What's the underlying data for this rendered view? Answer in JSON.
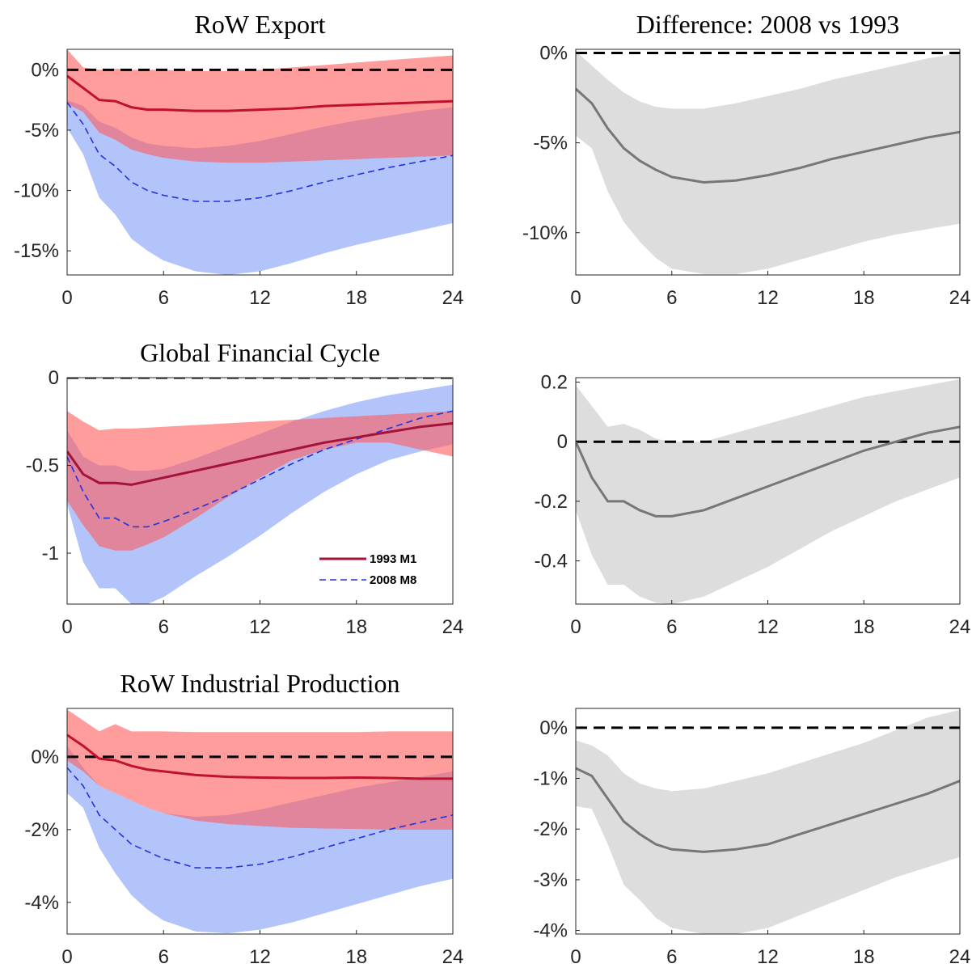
{
  "chart_data": [
    {
      "type": "line",
      "title": "RoW Export",
      "x": [
        0,
        1,
        2,
        3,
        4,
        5,
        6,
        8,
        10,
        12,
        14,
        16,
        18,
        20,
        22,
        24
      ],
      "xlim": [
        0,
        24
      ],
      "xticks": [
        0,
        6,
        12,
        18,
        24
      ],
      "ylim": [
        -17,
        1.7
      ],
      "yticks": [
        {
          "value": 0,
          "label": "0%"
        },
        {
          "value": -5,
          "label": "-5%"
        },
        {
          "value": -10,
          "label": "-10%"
        },
        {
          "value": -15,
          "label": "-15%"
        }
      ],
      "reference_line": 0,
      "series": [
        {
          "color": "#2233dd",
          "line_style": "dashed",
          "band_color": "#7f9cf5",
          "values": [
            -2.7,
            -4.5,
            -7.0,
            -8.0,
            -9.3,
            -10.0,
            -10.4,
            -10.9,
            -10.9,
            -10.6,
            -10.0,
            -9.3,
            -8.7,
            -8.1,
            -7.6,
            -7.1
          ],
          "upper": [
            -2.5,
            -3.0,
            -4.3,
            -4.8,
            -5.6,
            -6.1,
            -6.3,
            -6.5,
            -6.3,
            -5.9,
            -5.3,
            -4.7,
            -4.2,
            -3.8,
            -3.4,
            -3.1
          ],
          "lower": [
            -4.8,
            -7.0,
            -10.6,
            -12.0,
            -14.0,
            -15.0,
            -15.8,
            -16.7,
            -17.0,
            -16.7,
            -16.0,
            -15.2,
            -14.5,
            -13.9,
            -13.3,
            -12.7
          ]
        },
        {
          "color": "#c0122e",
          "line_style": "solid",
          "band_color": "#ff5c5c",
          "values": [
            -0.5,
            -1.5,
            -2.5,
            -2.6,
            -3.1,
            -3.3,
            -3.3,
            -3.4,
            -3.4,
            -3.3,
            -3.2,
            -3.0,
            -2.9,
            -2.8,
            -2.7,
            -2.6
          ],
          "upper": [
            1.7,
            0.2,
            0,
            0.1,
            0,
            0,
            0,
            -0.1,
            -0.1,
            0,
            0.2,
            0.4,
            0.6,
            0.8,
            1.0,
            1.2
          ],
          "lower": [
            -2.8,
            -3.5,
            -5.2,
            -5.8,
            -6.6,
            -7.0,
            -7.3,
            -7.6,
            -7.7,
            -7.7,
            -7.6,
            -7.5,
            -7.4,
            -7.3,
            -7.2,
            -7.1
          ]
        }
      ]
    },
    {
      "type": "line",
      "title": "Difference: 2008 vs 1993",
      "x": [
        0,
        1,
        2,
        3,
        4,
        5,
        6,
        8,
        10,
        12,
        14,
        16,
        18,
        20,
        22,
        24
      ],
      "xlim": [
        0,
        24
      ],
      "xticks": [
        0,
        6,
        12,
        18,
        24
      ],
      "ylim": [
        -12.35,
        0.2
      ],
      "yticks": [
        {
          "value": 0,
          "label": "0%"
        },
        {
          "value": -5,
          "label": "-5%"
        },
        {
          "value": -10,
          "label": "-10%"
        }
      ],
      "reference_line": 0,
      "series": [
        {
          "color": "#777777",
          "line_style": "solid",
          "band_color": "#dddddd",
          "values": [
            -2.0,
            -2.8,
            -4.2,
            -5.3,
            -6.0,
            -6.5,
            -6.9,
            -7.2,
            -7.1,
            -6.8,
            -6.4,
            -5.9,
            -5.5,
            -5.1,
            -4.7,
            -4.4
          ],
          "upper": [
            0.1,
            -0.7,
            -1.5,
            -2.2,
            -2.7,
            -3.0,
            -3.1,
            -3.1,
            -2.8,
            -2.4,
            -2.0,
            -1.5,
            -1.1,
            -0.7,
            -0.3,
            0.0
          ],
          "lower": [
            -4.6,
            -5.3,
            -7.7,
            -9.4,
            -10.5,
            -11.4,
            -12.0,
            -12.3,
            -12.3,
            -12.0,
            -11.5,
            -11.0,
            -10.5,
            -10.1,
            -9.8,
            -9.5
          ]
        }
      ]
    },
    {
      "type": "line",
      "title": "Global Financial Cycle",
      "x": [
        0,
        1,
        2,
        3,
        4,
        5,
        6,
        8,
        10,
        12,
        14,
        16,
        18,
        20,
        22,
        24
      ],
      "xlim": [
        0,
        24
      ],
      "xticks": [
        0,
        6,
        12,
        18,
        24
      ],
      "ylim": [
        -1.29,
        0
      ],
      "yticks": [
        0,
        -0.5,
        -1
      ],
      "reference_line": 0,
      "legend": "lower right",
      "series": [
        {
          "name": "2008 M8",
          "color": "#2233dd",
          "line_style": "dashed",
          "band_color": "#7f9cf5",
          "values": [
            -0.45,
            -0.65,
            -0.8,
            -0.8,
            -0.85,
            -0.85,
            -0.82,
            -0.75,
            -0.67,
            -0.58,
            -0.49,
            -0.41,
            -0.35,
            -0.29,
            -0.23,
            -0.19
          ],
          "upper": [
            -0.3,
            -0.45,
            -0.5,
            -0.5,
            -0.53,
            -0.53,
            -0.52,
            -0.46,
            -0.39,
            -0.32,
            -0.25,
            -0.19,
            -0.14,
            -0.1,
            -0.07,
            -0.04
          ],
          "lower": [
            -0.72,
            -1.05,
            -1.2,
            -1.2,
            -1.29,
            -1.29,
            -1.25,
            -1.13,
            -1.02,
            -0.9,
            -0.77,
            -0.65,
            -0.55,
            -0.47,
            -0.42,
            -0.38
          ]
        },
        {
          "name": "1993 M1",
          "color": "#a5123a",
          "line_style": "solid",
          "band_color": "#ff5c5c",
          "values": [
            -0.42,
            -0.55,
            -0.6,
            -0.6,
            -0.61,
            -0.59,
            -0.57,
            -0.53,
            -0.49,
            -0.45,
            -0.41,
            -0.37,
            -0.34,
            -0.31,
            -0.28,
            -0.26
          ],
          "upper": [
            -0.19,
            -0.25,
            -0.3,
            -0.29,
            -0.29,
            -0.285,
            -0.28,
            -0.27,
            -0.26,
            -0.25,
            -0.24,
            -0.23,
            -0.22,
            -0.21,
            -0.2,
            -0.19
          ],
          "lower": [
            -0.7,
            -0.84,
            -0.96,
            -0.985,
            -0.985,
            -0.95,
            -0.91,
            -0.8,
            -0.68,
            -0.57,
            -0.47,
            -0.41,
            -0.37,
            -0.37,
            -0.41,
            -0.45
          ]
        }
      ]
    },
    {
      "type": "line",
      "x": [
        0,
        1,
        2,
        3,
        4,
        5,
        6,
        8,
        10,
        12,
        14,
        16,
        18,
        20,
        22,
        24
      ],
      "xlim": [
        0,
        24
      ],
      "xticks": [
        0,
        6,
        12,
        18,
        24
      ],
      "ylim": [
        -0.545,
        0.215
      ],
      "yticks": [
        0.2,
        0,
        -0.2,
        -0.4
      ],
      "reference_line": 0,
      "series": [
        {
          "color": "#777777",
          "line_style": "solid",
          "band_color": "#dddddd",
          "values": [
            0,
            -0.12,
            -0.2,
            -0.2,
            -0.23,
            -0.25,
            -0.25,
            -0.23,
            -0.19,
            -0.15,
            -0.11,
            -0.07,
            -0.03,
            0.0,
            0.03,
            0.05
          ],
          "upper": [
            0.19,
            0.12,
            0.05,
            0.06,
            0.04,
            0.01,
            0.0,
            0.0,
            0.03,
            0.06,
            0.09,
            0.12,
            0.15,
            0.17,
            0.19,
            0.21
          ],
          "lower": [
            -0.23,
            -0.38,
            -0.48,
            -0.48,
            -0.52,
            -0.54,
            -0.545,
            -0.52,
            -0.47,
            -0.42,
            -0.36,
            -0.3,
            -0.25,
            -0.2,
            -0.16,
            -0.12
          ]
        }
      ]
    },
    {
      "type": "line",
      "title": "RoW Industrial Production",
      "x": [
        0,
        1,
        2,
        3,
        4,
        5,
        6,
        8,
        10,
        12,
        14,
        16,
        18,
        20,
        22,
        24
      ],
      "xlim": [
        0,
        24
      ],
      "xticks": [
        0,
        6,
        12,
        18,
        24
      ],
      "ylim": [
        -4.87,
        1.33
      ],
      "yticks": [
        {
          "value": 0,
          "label": "0%"
        },
        {
          "value": -2,
          "label": "-2%"
        },
        {
          "value": -4,
          "label": "-4%"
        }
      ],
      "reference_line": 0,
      "series": [
        {
          "color": "#2233dd",
          "line_style": "dashed",
          "band_color": "#7f9cf5",
          "values": [
            -0.3,
            -0.8,
            -1.6,
            -2.0,
            -2.4,
            -2.6,
            -2.8,
            -3.05,
            -3.05,
            -2.95,
            -2.75,
            -2.5,
            -2.25,
            -2.0,
            -1.8,
            -1.6
          ],
          "upper": [
            0.3,
            -0.3,
            -0.8,
            -1.0,
            -1.2,
            -1.4,
            -1.55,
            -1.65,
            -1.6,
            -1.45,
            -1.25,
            -1.05,
            -0.85,
            -0.7,
            -0.55,
            -0.4
          ],
          "lower": [
            -1.0,
            -1.4,
            -2.5,
            -3.2,
            -3.8,
            -4.2,
            -4.5,
            -4.8,
            -4.85,
            -4.75,
            -4.55,
            -4.3,
            -4.05,
            -3.8,
            -3.55,
            -3.35
          ]
        },
        {
          "color": "#c0122e",
          "line_style": "solid",
          "band_color": "#ff5c5c",
          "values": [
            0.6,
            0.3,
            -0.05,
            -0.1,
            -0.25,
            -0.35,
            -0.4,
            -0.5,
            -0.55,
            -0.57,
            -0.58,
            -0.58,
            -0.57,
            -0.58,
            -0.6,
            -0.6
          ],
          "upper": [
            1.3,
            1.0,
            0.7,
            0.9,
            0.7,
            0.7,
            0.7,
            0.68,
            0.68,
            0.68,
            0.68,
            0.68,
            0.68,
            0.7,
            0.7,
            0.7
          ],
          "lower": [
            -0.1,
            -0.4,
            -0.8,
            -1.0,
            -1.2,
            -1.4,
            -1.55,
            -1.75,
            -1.85,
            -1.9,
            -1.95,
            -1.97,
            -1.98,
            -2.0,
            -2.0,
            -2.0
          ]
        }
      ]
    },
    {
      "type": "line",
      "x": [
        0,
        1,
        2,
        3,
        4,
        5,
        6,
        8,
        10,
        12,
        14,
        16,
        18,
        20,
        22,
        24
      ],
      "xlim": [
        0,
        24
      ],
      "xticks": [
        0,
        6,
        12,
        18,
        24
      ],
      "ylim": [
        -4.07,
        0.38
      ],
      "yticks": [
        {
          "value": 0,
          "label": "0%"
        },
        {
          "value": -1,
          "label": "-1%"
        },
        {
          "value": -2,
          "label": "-2%"
        },
        {
          "value": -3,
          "label": "-3%"
        },
        {
          "value": -4,
          "label": "-4%"
        }
      ],
      "reference_line": 0,
      "series": [
        {
          "color": "#777777",
          "line_style": "solid",
          "band_color": "#dddddd",
          "values": [
            -0.8,
            -0.95,
            -1.4,
            -1.85,
            -2.1,
            -2.3,
            -2.4,
            -2.45,
            -2.4,
            -2.3,
            -2.1,
            -1.9,
            -1.7,
            -1.5,
            -1.3,
            -1.05
          ],
          "upper": [
            -0.25,
            -0.35,
            -0.55,
            -0.9,
            -1.1,
            -1.2,
            -1.25,
            -1.2,
            -1.05,
            -0.9,
            -0.7,
            -0.5,
            -0.3,
            -0.05,
            0.2,
            0.35
          ],
          "lower": [
            -1.55,
            -1.6,
            -2.3,
            -3.1,
            -3.4,
            -3.75,
            -3.95,
            -4.07,
            -4.07,
            -3.95,
            -3.7,
            -3.45,
            -3.2,
            -2.95,
            -2.75,
            -2.55
          ]
        }
      ]
    }
  ]
}
